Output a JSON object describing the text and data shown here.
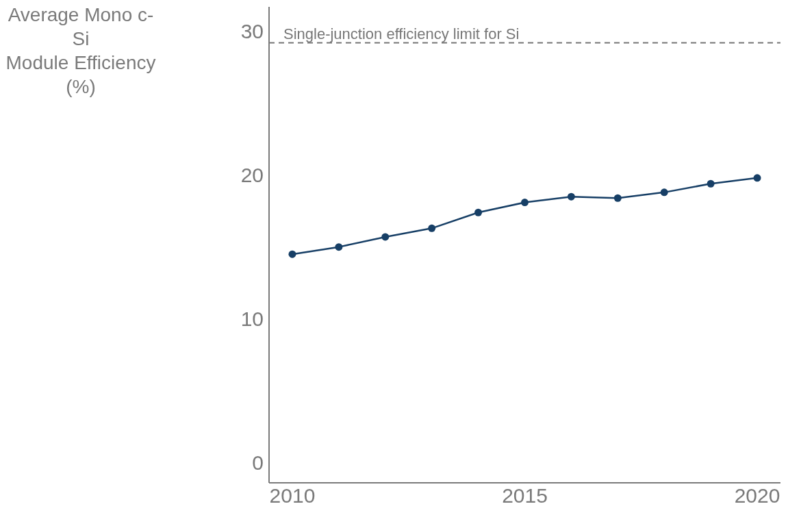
{
  "chart_data": {
    "type": "line",
    "ylabel": "Average Mono c-Si\nModule Efficiency\n(%)",
    "x": [
      2010,
      2011,
      2012,
      2013,
      2014,
      2015,
      2016,
      2017,
      2018,
      2019,
      2020
    ],
    "series": [
      {
        "color": "#173f66",
        "values": [
          14.5,
          15.0,
          15.7,
          16.3,
          17.4,
          18.1,
          18.5,
          18.4,
          18.8,
          19.4,
          19.8
        ]
      }
    ],
    "xlim": [
      2009.5,
      2020.5
    ],
    "xticks": [
      2010,
      2015,
      2020
    ],
    "ylim": [
      -1.4,
      31.7
    ],
    "yticks": [
      0,
      10,
      20,
      30
    ],
    "ref_lines": [
      {
        "axis": "y",
        "value": 29.2,
        "label": "Single-junction efficiency limit for Si",
        "color": "#777777",
        "line_style": "dashed"
      }
    ],
    "marker": "circle",
    "line_style": "solid",
    "grid": false
  }
}
